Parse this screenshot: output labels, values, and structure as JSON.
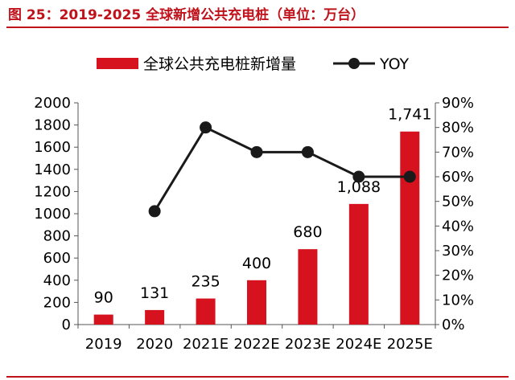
{
  "figure_title": "图 25：2019-2025 全球新增公共充电桩（单位：万台）",
  "colors": {
    "bar": "#d5121d",
    "line": "#1a1a1a",
    "title": "#c0121b"
  },
  "chart_data": {
    "type": "bar",
    "categories": [
      "2019",
      "2020",
      "2021E",
      "2022E",
      "2023E",
      "2024E",
      "2025E"
    ],
    "series": [
      {
        "name": "全球公共充电桩新增量",
        "type": "bar",
        "axis": "left",
        "values": [
          90,
          131,
          235,
          400,
          680,
          1088,
          1741
        ],
        "labels": [
          "90",
          "131",
          "235",
          "400",
          "680",
          "1,088",
          "1,741"
        ]
      },
      {
        "name": "YOY",
        "type": "line",
        "axis": "right",
        "values": [
          null,
          46,
          80,
          70,
          70,
          60,
          60
        ]
      }
    ],
    "y_left": {
      "ylim": [
        0,
        2000
      ],
      "ticks": [
        "0",
        "200",
        "400",
        "600",
        "800",
        "1000",
        "1200",
        "1400",
        "1600",
        "1800",
        "2000"
      ]
    },
    "y_right": {
      "ylim": [
        0,
        90
      ],
      "ticks": [
        "0%",
        "10%",
        "20%",
        "30%",
        "40%",
        "50%",
        "60%",
        "70%",
        "80%",
        "90%"
      ]
    },
    "legend": "top"
  }
}
